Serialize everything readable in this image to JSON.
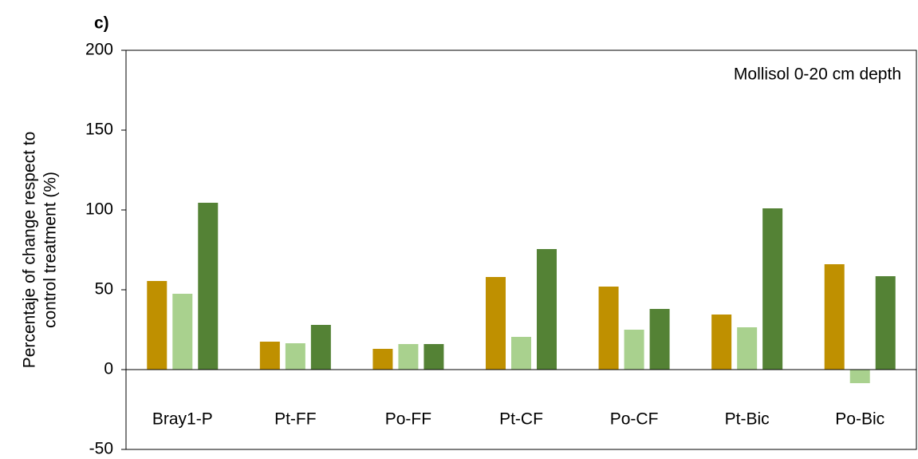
{
  "chart_data": {
    "type": "bar",
    "title": "c)",
    "annotation": "Mollisol 0-20 cm depth",
    "ylabel": [
      "Percentaje of change respect to",
      "control treatment (%)"
    ],
    "categories": [
      "Bray1-P",
      "Pt-FF",
      "Po-FF",
      "Pt-CF",
      "Po-CF",
      "Pt-Bic",
      "Po-Bic"
    ],
    "series": [
      {
        "color": "#bf9000",
        "values": [
          55.5,
          17.5,
          13,
          58,
          52,
          34.5,
          66
        ]
      },
      {
        "color": "#a9d18e",
        "values": [
          47.5,
          16.5,
          16,
          20.5,
          25,
          26.5,
          -8.5
        ]
      },
      {
        "color": "#548235",
        "values": [
          104.5,
          28,
          16,
          75.5,
          38,
          101,
          58.5
        ]
      }
    ],
    "ylim": [
      -50,
      200
    ],
    "yticks": [
      -50,
      0,
      50,
      100,
      150,
      200
    ],
    "grid": false
  }
}
